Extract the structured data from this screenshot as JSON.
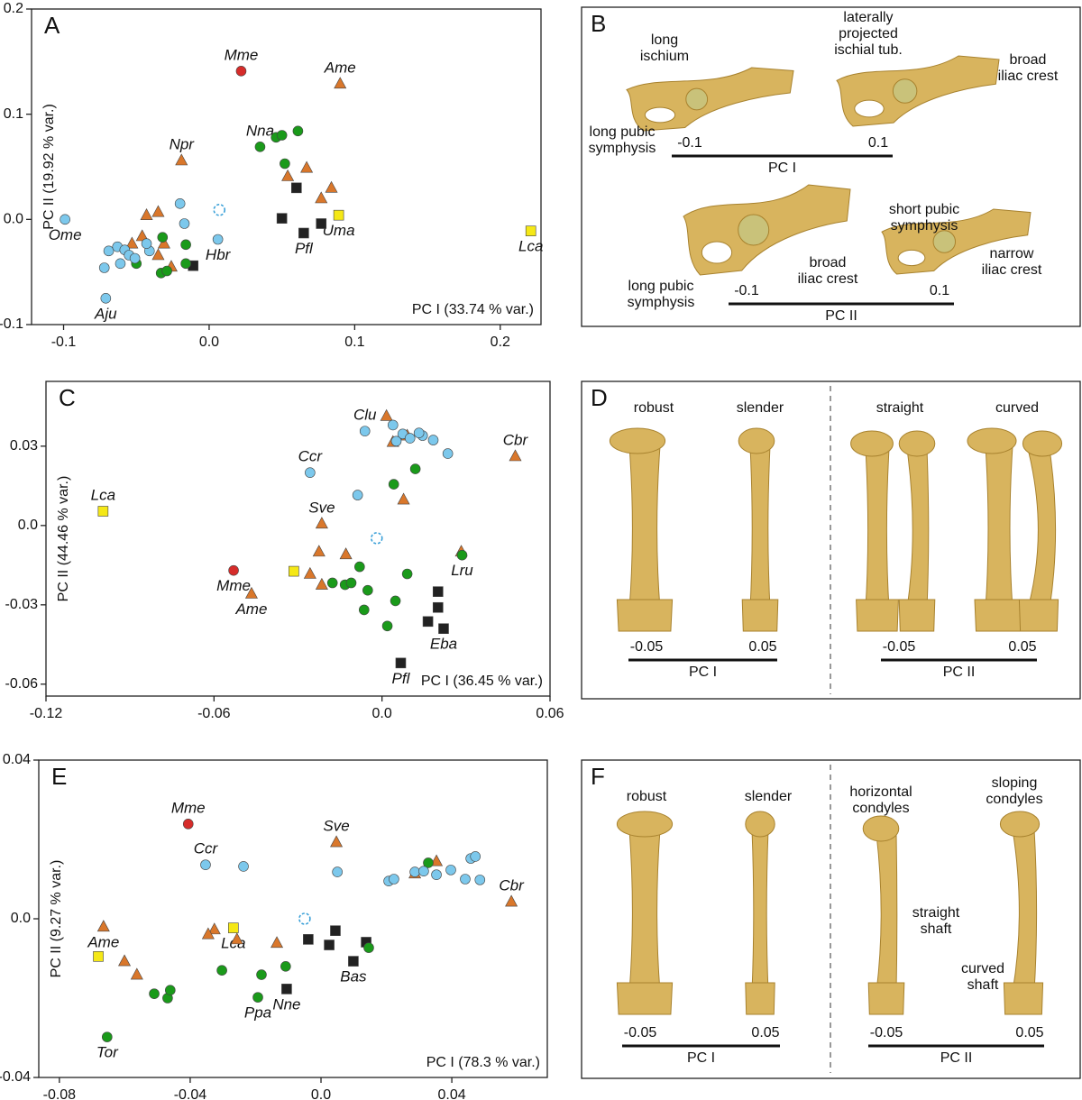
{
  "chart_data": [
    {
      "type": "scatter",
      "panel": "A",
      "x_label": "PC I (33.74 % var.)",
      "y_label": "PC II (19.92 % var.)",
      "xlim": [
        -0.122,
        0.228
      ],
      "xticks": [
        -0.1,
        {
          "value": 0,
          "label": "0.0"
        },
        0.1,
        0.2
      ],
      "ylim": [
        -0.1,
        0.2
      ],
      "yticks": [
        -0.1,
        {
          "value": 0,
          "label": "0.0"
        },
        0.1,
        0.2
      ],
      "series": [
        {
          "color": "#d62c2a",
          "marker": "circle",
          "x": [
            0.022
          ],
          "values": [
            0.141
          ],
          "labels": [
            "Mme"
          ]
        },
        {
          "color": "#f5e816",
          "marker": "square",
          "x": [
            0.089,
            0.221
          ],
          "values": [
            0.004,
            -0.011
          ],
          "labels": [
            "Uma",
            "Lca"
          ]
        },
        {
          "color": "#222222",
          "marker": "square",
          "x": [
            0.06,
            0.05,
            0.077,
            0.065,
            -0.011
          ],
          "values": [
            0.03,
            0.001,
            -0.004,
            -0.013,
            -0.044
          ],
          "labels": [
            null,
            null,
            null,
            "Pfl",
            null
          ]
        },
        {
          "color": "#d9772b",
          "marker": "triangle",
          "x": [
            0.09,
            -0.019,
            0.067,
            0.054,
            0.084,
            0.077,
            -0.035,
            -0.043,
            -0.053,
            -0.046,
            -0.031,
            -0.035,
            -0.026
          ],
          "values": [
            0.129,
            0.056,
            0.049,
            0.041,
            0.03,
            0.02,
            0.007,
            0.004,
            -0.023,
            -0.016,
            -0.023,
            -0.034,
            -0.045
          ],
          "labels": [
            "Ame",
            "Npr",
            null,
            null,
            null,
            null,
            null,
            null,
            null,
            null,
            null,
            null,
            null
          ]
        },
        {
          "color": "#1a9a1a",
          "marker": "circle",
          "x": [
            0.035,
            0.061,
            0.046,
            0.05,
            0.052,
            -0.032,
            -0.016,
            -0.05,
            -0.033,
            -0.029,
            -0.016
          ],
          "values": [
            0.069,
            0.084,
            0.078,
            0.08,
            0.053,
            -0.017,
            -0.024,
            -0.042,
            -0.051,
            -0.049,
            -0.042
          ],
          "labels": [
            "Nna",
            null,
            null,
            null,
            null,
            null,
            null,
            null,
            null,
            null,
            null
          ]
        },
        {
          "color": "#7cc8ec",
          "marker": "circle",
          "x": [
            -0.099,
            0.006,
            -0.02,
            -0.017,
            -0.071,
            -0.072,
            -0.069,
            -0.063,
            -0.058,
            -0.055,
            -0.061,
            -0.041,
            -0.043,
            -0.051
          ],
          "values": [
            0.0,
            -0.019,
            0.015,
            -0.004,
            -0.075,
            -0.046,
            -0.03,
            -0.026,
            -0.029,
            -0.034,
            -0.042,
            -0.03,
            -0.023,
            -0.037
          ],
          "labels": [
            "Ome",
            "Hbr",
            null,
            null,
            "Aju",
            null,
            null,
            null,
            null,
            null,
            null,
            null,
            null,
            null
          ]
        },
        {
          "color": "#3aa0d8",
          "marker": "dashed-circle",
          "x": [
            0.007
          ],
          "values": [
            0.009
          ]
        }
      ]
    },
    {
      "type": "scatter",
      "panel": "C",
      "x_label": "PC I (36.45 % var.)",
      "y_label": "PC II (44.46 % var.)",
      "xlim": [
        -0.12,
        0.06
      ],
      "xticks": [
        -0.12,
        -0.06,
        {
          "value": 0,
          "label": "0.0"
        },
        0.06
      ],
      "ylim": [
        -0.0645,
        0.0545
      ],
      "yticks": [
        -0.06,
        -0.03,
        {
          "value": 0,
          "label": "0.0"
        },
        0.03
      ],
      "series": [
        {
          "color": "#d62c2a",
          "marker": "circle",
          "x": [
            -0.053
          ],
          "values": [
            -0.017
          ],
          "labels": [
            "Mme"
          ]
        },
        {
          "color": "#f5e816",
          "marker": "square",
          "x": [
            -0.0996,
            -0.0315
          ],
          "values": [
            0.0054,
            -0.0173
          ],
          "labels": [
            "Lca",
            null
          ]
        },
        {
          "color": "#222222",
          "marker": "square",
          "x": [
            0.0067,
            0.022,
            0.0164,
            0.02,
            0.02
          ],
          "values": [
            -0.052,
            -0.039,
            -0.0363,
            -0.025,
            -0.031
          ],
          "labels": [
            "Pfl",
            "Eba",
            null,
            null,
            null
          ]
        },
        {
          "color": "#d9772b",
          "marker": "triangle",
          "x": [
            0.0476,
            0.0016,
            0.009,
            -0.0215,
            -0.0466,
            -0.0257,
            -0.0215,
            -0.0225,
            -0.0129,
            0.0283,
            0.0077,
            0.0039
          ],
          "values": [
            0.0262,
            0.0414,
            0.034,
            0.0007,
            -0.0258,
            -0.0183,
            -0.0224,
            -0.0099,
            -0.0109,
            -0.0099,
            0.0098,
            0.0316
          ],
          "labels": [
            "Cbr",
            null,
            null,
            "Sve",
            "Ame",
            null,
            null,
            null,
            null,
            null,
            null,
            null
          ]
        },
        {
          "color": "#1a9a1a",
          "marker": "circle",
          "x": [
            0.0286,
            -0.008,
            -0.0177,
            -0.0132,
            -0.011,
            -0.0051,
            -0.0064,
            0.0048,
            0.0019,
            0.009,
            0.0119,
            0.0042
          ],
          "values": [
            -0.0112,
            -0.0156,
            -0.0217,
            -0.0224,
            -0.0217,
            -0.0245,
            -0.0319,
            -0.0285,
            -0.038,
            -0.0183,
            0.0214,
            0.0156
          ],
          "labels": [
            "Lru",
            null,
            null,
            null,
            null,
            null,
            null,
            null,
            null,
            null,
            null,
            null
          ]
        },
        {
          "color": "#7cc8ec",
          "marker": "circle",
          "x": [
            -0.0061,
            0.0039,
            0.0074,
            0.0051,
            0.01,
            0.0145,
            0.0183,
            0.0235,
            -0.0257,
            -0.0087,
            0.0132
          ],
          "values": [
            0.0357,
            0.038,
            0.0346,
            0.0319,
            0.033,
            0.034,
            0.0323,
            0.0272,
            0.02,
            0.0115,
            0.035
          ],
          "labels": [
            "Clu",
            null,
            null,
            null,
            null,
            null,
            null,
            null,
            "Ccr",
            null,
            null
          ]
        },
        {
          "color": "#3aa0d8",
          "marker": "dashed-circle",
          "x": [
            -0.0019
          ],
          "values": [
            -0.0048
          ]
        }
      ]
    },
    {
      "type": "scatter",
      "panel": "E",
      "x_label": "PC I (78.3 % var.)",
      "y_label": "PC II (9.27 % var.)",
      "xlim": [
        -0.0863,
        0.0692
      ],
      "xticks": [
        -0.08,
        -0.04,
        {
          "value": 0,
          "label": "0.0"
        },
        0.04
      ],
      "ylim": [
        -0.04,
        0.04
      ],
      "yticks": [
        -0.04,
        {
          "value": 0,
          "label": "0.0"
        },
        0.04
      ],
      "series": [
        {
          "color": "#d62c2a",
          "marker": "circle",
          "x": [
            -0.0406
          ],
          "values": [
            0.0239
          ],
          "labels": [
            "Mme"
          ]
        },
        {
          "color": "#f5e816",
          "marker": "square",
          "x": [
            -0.0268,
            -0.0681
          ],
          "values": [
            -0.0023,
            -0.0095
          ],
          "labels": [
            "Lca",
            null
          ]
        },
        {
          "color": "#222222",
          "marker": "square",
          "x": [
            0.0044,
            -0.0039,
            0.0025,
            0.0099,
            0.0138,
            -0.0105
          ],
          "values": [
            -0.003,
            -0.0052,
            -0.0066,
            -0.0107,
            -0.0059,
            -0.0177
          ],
          "labels": [
            null,
            null,
            null,
            "Bas",
            null,
            "Nne"
          ]
        },
        {
          "color": "#d9772b",
          "marker": "triangle",
          "x": [
            0.0047,
            0.0582,
            -0.0665,
            -0.0563,
            -0.0601,
            -0.0326,
            -0.0345,
            -0.0257,
            -0.0135,
            0.0287,
            0.0353
          ],
          "values": [
            0.0193,
            0.0043,
            -0.002,
            -0.0141,
            -0.0107,
            -0.0027,
            -0.0039,
            -0.0052,
            -0.0061,
            0.0114,
            0.0145
          ],
          "labels": [
            "Sve",
            "Cbr",
            "Ame",
            null,
            null,
            null,
            null,
            null,
            null,
            null,
            null
          ]
        },
        {
          "color": "#1a9a1a",
          "marker": "circle",
          "x": [
            -0.0654,
            -0.0193,
            -0.051,
            -0.0469,
            -0.0461,
            -0.0303,
            -0.0182,
            -0.0108,
            0.0146,
            0.0328
          ],
          "values": [
            -0.0298,
            -0.0198,
            -0.0189,
            -0.02,
            -0.018,
            -0.013,
            -0.0141,
            -0.012,
            -0.0073,
            0.0141
          ],
          "labels": [
            "Tor",
            "Ppa",
            null,
            null,
            null,
            null,
            null,
            null,
            null,
            null
          ]
        },
        {
          "color": "#7cc8ec",
          "marker": "circle",
          "x": [
            -0.0353,
            -0.0237,
            0.005,
            0.0207,
            0.0223,
            0.0287,
            0.0353,
            0.0397,
            0.0441,
            0.0458,
            0.0472,
            0.0486,
            0.0314
          ],
          "values": [
            0.0136,
            0.0132,
            0.0118,
            0.0095,
            0.01,
            0.0118,
            0.0111,
            0.0123,
            0.01,
            0.0152,
            0.0157,
            0.0098,
            0.012
          ],
          "labels": [
            "Ccr",
            null,
            null,
            null,
            null,
            null,
            null,
            null,
            null,
            null,
            null,
            null,
            null
          ]
        },
        {
          "color": "#3aa0d8",
          "marker": "dashed-circle",
          "x": [
            -0.005
          ],
          "values": [
            0.0
          ]
        }
      ]
    }
  ],
  "illustrations": [
    {
      "panel": "B",
      "labels": [
        [
          "long",
          "ischium"
        ],
        [
          "laterally",
          "projected",
          "ischial tub."
        ],
        [
          "broad",
          "iliac crest"
        ],
        [
          "long pubic",
          "symphysis"
        ],
        [
          "short pubic",
          "symphysis"
        ],
        [
          "broad",
          "iliac crest"
        ],
        [
          "narrow",
          "iliac crest"
        ],
        [
          "long pubic",
          "symphysis"
        ]
      ],
      "scales": [
        {
          "min": "-0.1",
          "max": "0.1",
          "axis": "PC I"
        },
        {
          "min": "-0.1",
          "max": "0.1",
          "axis": "PC II"
        }
      ]
    },
    {
      "panel": "D",
      "labels": [
        [
          "robust"
        ],
        [
          "slender"
        ],
        [
          "straight"
        ],
        [
          "curved"
        ]
      ],
      "scales": [
        {
          "min": "-0.05",
          "max": "0.05",
          "axis": "PC I"
        },
        {
          "min": "-0.05",
          "max": "0.05",
          "axis": "PC II"
        }
      ]
    },
    {
      "panel": "F",
      "labels": [
        [
          "robust"
        ],
        [
          "slender"
        ],
        [
          "horizontal",
          "condyles"
        ],
        [
          "sloping",
          "condyles"
        ],
        [
          "straight",
          "shaft"
        ],
        [
          "curved",
          "shaft"
        ]
      ],
      "scales": [
        {
          "min": "-0.05",
          "max": "0.05",
          "axis": "PC I"
        },
        {
          "min": "-0.05",
          "max": "0.05",
          "axis": "PC II"
        }
      ]
    }
  ]
}
